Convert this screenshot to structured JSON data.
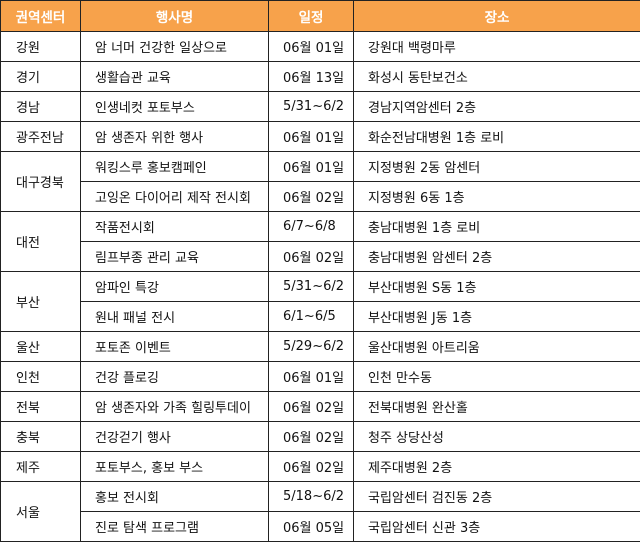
{
  "header": {
    "region": "권역센터",
    "event": "행사명",
    "date": "일정",
    "place": "장소"
  },
  "groups": [
    {
      "region": "강원",
      "rows": [
        {
          "event": "암 너머 건강한 일상으로",
          "date": "06월 01일",
          "place": "강원대 백령마루"
        }
      ]
    },
    {
      "region": "경기",
      "rows": [
        {
          "event": "생활습관 교육",
          "date": "06월 13일",
          "place": "화성시 동탄보건소"
        }
      ]
    },
    {
      "region": "경남",
      "rows": [
        {
          "event": "인생네컷 포토부스",
          "date": "5/31~6/2",
          "place": "경남지역암센터 2층"
        }
      ]
    },
    {
      "region": "광주전남",
      "rows": [
        {
          "event": "암 생존자 위한 행사",
          "date": "06월 01일",
          "place": "화순전남대병원 1층 로비"
        }
      ]
    },
    {
      "region": "대구경북",
      "rows": [
        {
          "event": "워킹스루 홍보캠페인",
          "date": "06월 01일",
          "place": "지정병원 2동 암센터"
        },
        {
          "event": "고잉온 다이어리 제작 전시회",
          "date": "06월 02일",
          "place": "지정병원 6동 1층"
        }
      ]
    },
    {
      "region": "대전",
      "rows": [
        {
          "event": "작품전시회",
          "date": "6/7~6/8",
          "place": "충남대병원 1층 로비"
        },
        {
          "event": "림프부종 관리 교육",
          "date": "06월 02일",
          "place": "충남대병원 암센터 2층"
        }
      ]
    },
    {
      "region": "부산",
      "rows": [
        {
          "event": "암파인 특강",
          "date": "5/31~6/2",
          "place": "부산대병원 S동 1층"
        },
        {
          "event": "원내 패널 전시",
          "date": "6/1~6/5",
          "place": "부산대병원 J동 1층"
        }
      ]
    },
    {
      "region": "울산",
      "rows": [
        {
          "event": "포토존 이벤트",
          "date": "5/29~6/2",
          "place": "울산대병원 아트리움"
        }
      ]
    },
    {
      "region": "인천",
      "rows": [
        {
          "event": "건강 플로깅",
          "date": "06월 01일",
          "place": "인천 만수동"
        }
      ]
    },
    {
      "region": "전북",
      "rows": [
        {
          "event": "암 생존자와 가족 힐링투데이",
          "date": "06월 02일",
          "place": "전북대병원 완산홀"
        }
      ]
    },
    {
      "region": "충북",
      "rows": [
        {
          "event": "건강걷기 행사",
          "date": "06월 02일",
          "place": "청주 상당산성"
        }
      ]
    },
    {
      "region": "제주",
      "rows": [
        {
          "event": "포토부스, 홍보 부스",
          "date": "06월 02일",
          "place": "제주대병원 2층"
        }
      ]
    },
    {
      "region": "서울",
      "rows": [
        {
          "event": "홍보 전시회",
          "date": "5/18~6/2",
          "place": "국립암센터 검진동 2층"
        },
        {
          "event": "진로 탐색 프로그램",
          "date": "06월 05일",
          "place": "국립암센터 신관 3층"
        }
      ]
    }
  ],
  "colors": {
    "header_bg": "#F7A24B",
    "header_text": "#FFFFFF",
    "border": "#222222"
  }
}
